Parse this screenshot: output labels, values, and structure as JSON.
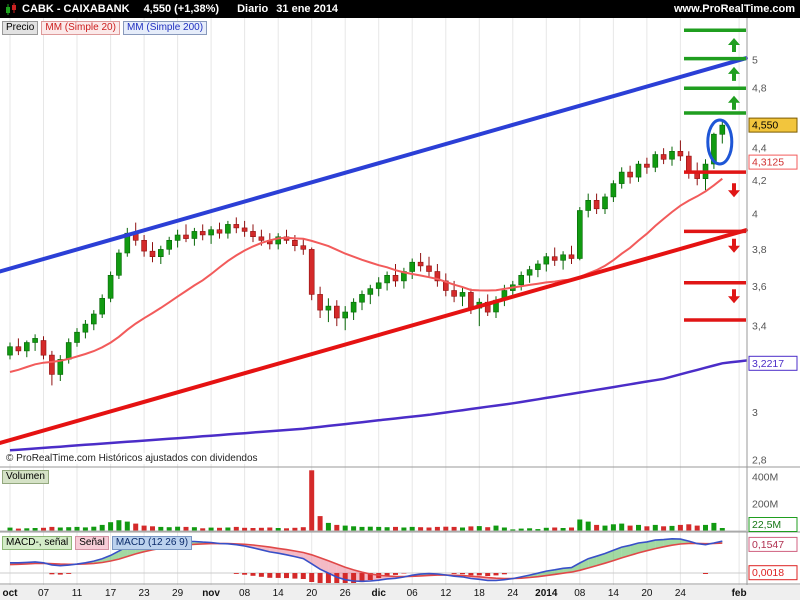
{
  "header": {
    "symbol_title": "CABK - CAIXABANK",
    "last_price": "4,550 (+1,38%)",
    "timeframe": "Diario",
    "date": "31 ene 2014",
    "site": "www.ProRealTime.com"
  },
  "legend": {
    "price_label": "Precio",
    "mm20_label": "MM (Simple 20)",
    "mm200_label": "MM (Simple 200)"
  },
  "copyright": "© ProRealTime.com  Históricos ajustados con dividendos",
  "price_axis": {
    "labels": [
      {
        "text": "5",
        "price": 5.0
      },
      {
        "text": "4,8",
        "price": 4.8
      },
      {
        "text": "4,4",
        "price": 4.4
      },
      {
        "text": "4,2",
        "price": 4.2
      },
      {
        "text": "4",
        "price": 4.0
      },
      {
        "text": "3,8",
        "price": 3.8
      },
      {
        "text": "3,6",
        "price": 3.6
      },
      {
        "text": "3,4",
        "price": 3.4
      },
      {
        "text": "3",
        "price": 3.0
      },
      {
        "text": "2,8",
        "price": 2.8
      }
    ],
    "badges": [
      {
        "text": "4,550",
        "price": 4.55,
        "type": "last"
      },
      {
        "text": "4,3125",
        "price": 4.3125,
        "type": "mm20"
      },
      {
        "text": "3,2217",
        "price": 3.2217,
        "type": "mm200"
      }
    ]
  },
  "volume_panel": {
    "label": "Volumen",
    "axis": [
      {
        "label": "400M",
        "value": 400
      },
      {
        "label": "200M",
        "value": 200
      }
    ],
    "badge": {
      "text": "22,5M",
      "value": 22.5
    }
  },
  "macd_panel": {
    "labels": {
      "hist": "MACD-, señal",
      "signal": "Señal",
      "macd": "MACD (12 26 9)"
    },
    "badges": [
      {
        "text": "0,1547",
        "value": 0.1547,
        "type": "signal"
      },
      {
        "text": "0,0018",
        "value": 0.0018,
        "type": "hist"
      }
    ]
  },
  "x_axis": {
    "ticks": [
      {
        "i": 0,
        "label": "oct",
        "b": true
      },
      {
        "i": 4,
        "label": "07"
      },
      {
        "i": 8,
        "label": "11"
      },
      {
        "i": 12,
        "label": "17"
      },
      {
        "i": 16,
        "label": "23"
      },
      {
        "i": 20,
        "label": "29"
      },
      {
        "i": 24,
        "label": "nov",
        "b": true
      },
      {
        "i": 28,
        "label": "08"
      },
      {
        "i": 32,
        "label": "14"
      },
      {
        "i": 36,
        "label": "20"
      },
      {
        "i": 40,
        "label": "26"
      },
      {
        "i": 44,
        "label": "dic",
        "b": true
      },
      {
        "i": 48,
        "label": "06"
      },
      {
        "i": 52,
        "label": "12"
      },
      {
        "i": 56,
        "label": "18"
      },
      {
        "i": 60,
        "label": "24"
      },
      {
        "i": 64,
        "label": "2014",
        "b": true
      },
      {
        "i": 68,
        "label": "08"
      },
      {
        "i": 72,
        "label": "14"
      },
      {
        "i": 76,
        "label": "20"
      },
      {
        "i": 80,
        "label": "24"
      },
      {
        "i": 87,
        "label": "feb",
        "b": true
      }
    ]
  },
  "colors": {
    "candle_up": "#119A11",
    "candle_up_dark": "#076607",
    "candle_down": "#D42A2A",
    "candle_down_dark": "#8F1111",
    "mm20": "#F25B5B",
    "mm200": "#4B2DC8",
    "trend_blue": "#2B3FD6",
    "trend_red": "#E51212",
    "level_green": "#1F9E1F",
    "level_red": "#E01515",
    "annotation_blue": "#1E56D6",
    "last_badge_bg": "#F2C53D",
    "macd_line": "#3850C8",
    "signal_line": "#E04848"
  },
  "chart_data": {
    "type": "candlestick",
    "title": "CABK - CAIXABANK Diario",
    "scale": "log",
    "price_range": [
      2.75,
      5.25
    ],
    "volume_range_m": [
      0,
      450
    ],
    "indicators": {
      "mm": [
        20,
        200
      ],
      "macd": [
        12,
        26,
        9
      ]
    },
    "ohlc": [
      [
        3.26,
        3.32,
        3.24,
        3.3
      ],
      [
        3.3,
        3.34,
        3.26,
        3.28
      ],
      [
        3.28,
        3.33,
        3.25,
        3.32
      ],
      [
        3.32,
        3.36,
        3.28,
        3.34
      ],
      [
        3.33,
        3.35,
        3.24,
        3.26
      ],
      [
        3.26,
        3.28,
        3.12,
        3.17
      ],
      [
        3.17,
        3.26,
        3.14,
        3.24
      ],
      [
        3.24,
        3.34,
        3.22,
        3.32
      ],
      [
        3.32,
        3.39,
        3.3,
        3.37
      ],
      [
        3.37,
        3.43,
        3.34,
        3.41
      ],
      [
        3.41,
        3.48,
        3.38,
        3.46
      ],
      [
        3.46,
        3.56,
        3.44,
        3.54
      ],
      [
        3.54,
        3.68,
        3.52,
        3.66
      ],
      [
        3.66,
        3.8,
        3.64,
        3.78
      ],
      [
        3.78,
        3.92,
        3.76,
        3.89
      ],
      [
        3.89,
        3.95,
        3.82,
        3.85
      ],
      [
        3.85,
        3.88,
        3.76,
        3.79
      ],
      [
        3.79,
        3.84,
        3.73,
        3.76
      ],
      [
        3.76,
        3.82,
        3.72,
        3.8
      ],
      [
        3.8,
        3.87,
        3.77,
        3.85
      ],
      [
        3.85,
        3.91,
        3.81,
        3.88
      ],
      [
        3.88,
        3.94,
        3.84,
        3.86
      ],
      [
        3.86,
        3.92,
        3.82,
        3.9
      ],
      [
        3.9,
        3.94,
        3.85,
        3.88
      ],
      [
        3.88,
        3.93,
        3.83,
        3.91
      ],
      [
        3.91,
        3.95,
        3.86,
        3.89
      ],
      [
        3.89,
        3.96,
        3.86,
        3.94
      ],
      [
        3.94,
        3.98,
        3.89,
        3.92
      ],
      [
        3.92,
        3.96,
        3.87,
        3.9
      ],
      [
        3.9,
        3.94,
        3.84,
        3.87
      ],
      [
        3.87,
        3.91,
        3.82,
        3.85
      ],
      [
        3.85,
        3.89,
        3.8,
        3.83
      ],
      [
        3.83,
        3.89,
        3.8,
        3.87
      ],
      [
        3.87,
        3.91,
        3.83,
        3.85
      ],
      [
        3.85,
        3.88,
        3.79,
        3.82
      ],
      [
        3.82,
        3.86,
        3.77,
        3.8
      ],
      [
        3.8,
        3.81,
        3.53,
        3.56
      ],
      [
        3.56,
        3.6,
        3.44,
        3.48
      ],
      [
        3.48,
        3.54,
        3.42,
        3.5
      ],
      [
        3.5,
        3.53,
        3.4,
        3.44
      ],
      [
        3.44,
        3.5,
        3.38,
        3.47
      ],
      [
        3.47,
        3.54,
        3.43,
        3.52
      ],
      [
        3.52,
        3.58,
        3.48,
        3.56
      ],
      [
        3.56,
        3.61,
        3.51,
        3.59
      ],
      [
        3.59,
        3.65,
        3.55,
        3.62
      ],
      [
        3.62,
        3.68,
        3.58,
        3.66
      ],
      [
        3.66,
        3.72,
        3.6,
        3.63
      ],
      [
        3.63,
        3.7,
        3.59,
        3.68
      ],
      [
        3.68,
        3.75,
        3.64,
        3.73
      ],
      [
        3.73,
        3.78,
        3.68,
        3.71
      ],
      [
        3.71,
        3.76,
        3.65,
        3.68
      ],
      [
        3.68,
        3.72,
        3.6,
        3.63
      ],
      [
        3.63,
        3.67,
        3.55,
        3.58
      ],
      [
        3.58,
        3.63,
        3.52,
        3.55
      ],
      [
        3.55,
        3.6,
        3.5,
        3.57
      ],
      [
        3.57,
        3.59,
        3.46,
        3.49
      ],
      [
        3.49,
        3.54,
        3.4,
        3.52
      ],
      [
        3.52,
        3.56,
        3.45,
        3.47
      ],
      [
        3.47,
        3.55,
        3.44,
        3.53
      ],
      [
        3.53,
        3.61,
        3.5,
        3.58
      ],
      [
        3.58,
        3.63,
        3.54,
        3.61
      ],
      [
        3.61,
        3.68,
        3.58,
        3.66
      ],
      [
        3.66,
        3.71,
        3.62,
        3.69
      ],
      [
        3.69,
        3.74,
        3.65,
        3.72
      ],
      [
        3.72,
        3.78,
        3.68,
        3.76
      ],
      [
        3.76,
        3.81,
        3.71,
        3.74
      ],
      [
        3.74,
        3.79,
        3.69,
        3.77
      ],
      [
        3.77,
        3.82,
        3.72,
        3.75
      ],
      [
        3.75,
        4.04,
        3.74,
        4.02
      ],
      [
        4.02,
        4.12,
        3.98,
        4.08
      ],
      [
        4.08,
        4.12,
        4.0,
        4.03
      ],
      [
        4.03,
        4.12,
        4.0,
        4.1
      ],
      [
        4.1,
        4.2,
        4.07,
        4.18
      ],
      [
        4.18,
        4.28,
        4.15,
        4.25
      ],
      [
        4.25,
        4.29,
        4.18,
        4.22
      ],
      [
        4.22,
        4.32,
        4.19,
        4.3
      ],
      [
        4.3,
        4.34,
        4.24,
        4.28
      ],
      [
        4.28,
        4.38,
        4.25,
        4.36
      ],
      [
        4.36,
        4.4,
        4.3,
        4.33
      ],
      [
        4.33,
        4.41,
        4.29,
        4.38
      ],
      [
        4.38,
        4.45,
        4.32,
        4.35
      ],
      [
        4.35,
        4.38,
        4.21,
        4.25
      ],
      [
        4.25,
        4.31,
        4.17,
        4.21
      ],
      [
        4.21,
        4.33,
        4.14,
        4.3
      ],
      [
        4.3,
        4.5,
        4.27,
        4.49
      ],
      [
        4.49,
        4.57,
        4.43,
        4.55
      ]
    ],
    "volumes": [
      25,
      18,
      20,
      22,
      24,
      30,
      26,
      28,
      30,
      27,
      32,
      45,
      65,
      80,
      70,
      55,
      40,
      35,
      30,
      28,
      32,
      30,
      28,
      20,
      25,
      24,
      26,
      30,
      24,
      22,
      24,
      26,
      22,
      20,
      24,
      28,
      450,
      110,
      60,
      45,
      40,
      35,
      30,
      32,
      30,
      28,
      30,
      26,
      30,
      28,
      26,
      30,
      32,
      30,
      26,
      34,
      36,
      28,
      40,
      26,
      12,
      18,
      20,
      14,
      24,
      26,
      22,
      26,
      85,
      70,
      45,
      40,
      50,
      55,
      40,
      45,
      35,
      45,
      35,
      38,
      45,
      50,
      40,
      45,
      60,
      22.5
    ],
    "pre_closes": [
      3.05,
      3.07,
      3.06,
      3.09,
      3.11,
      3.1,
      3.13,
      3.15,
      3.14,
      3.17,
      3.19,
      3.18,
      3.21,
      3.22,
      3.2,
      3.24,
      3.26,
      3.25,
      3.27,
      3.28
    ],
    "mm200_points": [
      [
        0,
        2.84
      ],
      [
        20,
        2.89
      ],
      [
        35,
        2.93
      ],
      [
        50,
        2.99
      ],
      [
        60,
        3.04
      ],
      [
        70,
        3.1
      ],
      [
        78,
        3.15
      ],
      [
        85,
        3.2217
      ],
      [
        88,
        3.235
      ]
    ],
    "trendlines": [
      {
        "name": "upper-channel-trendline",
        "color": "blue",
        "from": [
          -1.2,
          3.68
        ],
        "to": [
          88.8,
          5.03
        ]
      },
      {
        "name": "lower-channel-trendline",
        "color": "red",
        "from": [
          -1.2,
          2.87
        ],
        "to": [
          88.8,
          3.92
        ]
      }
    ],
    "levels": {
      "resistance": [
        5.22,
        5.01,
        4.8,
        4.63
      ],
      "support": [
        4.25,
        3.9,
        3.62,
        3.43
      ],
      "up_arrows": [
        5.11,
        4.9,
        4.7
      ],
      "down_arrows": [
        4.14,
        3.82,
        3.55
      ]
    },
    "ellipse": {
      "i_center": 84.7,
      "price_center": 4.44
    }
  }
}
